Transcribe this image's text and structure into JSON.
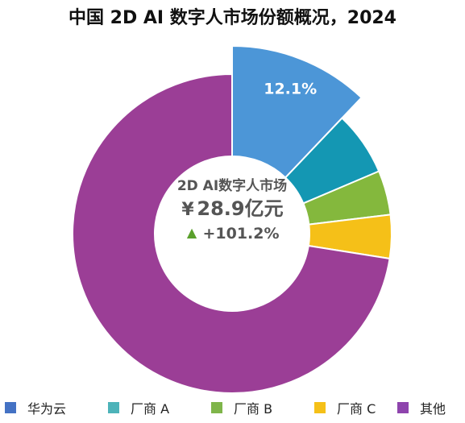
{
  "chart_data": {
    "type": "pie",
    "variant": "donut",
    "title": "中国 2D AI 数字人市场份额概况，2024",
    "center": {
      "label": "2D AI数字人市场",
      "value": "¥28.9亿元",
      "value_currency": "¥",
      "value_number": "28.9亿元",
      "growth_arrow": "▲",
      "growth": "+101.2%"
    },
    "slices": [
      {
        "name": "华为云",
        "value": 12.1,
        "label": "12.1%",
        "color": "#4C96D7",
        "exploded": true
      },
      {
        "name": "厂商 A",
        "value": 6.5,
        "color": "#1497B3",
        "exploded": false
      },
      {
        "name": "厂商 B",
        "value": 4.5,
        "color": "#84B83D",
        "exploded": false
      },
      {
        "name": "厂商 C",
        "value": 4.4,
        "color": "#F5C018",
        "exploded": false
      },
      {
        "name": "其他",
        "value": 72.5,
        "color": "#9B3E96",
        "exploded": false
      }
    ],
    "legend_position": "bottom",
    "legend_colors": [
      "#4472C4",
      "#4DB3B9",
      "#7FB54A",
      "#F5C018",
      "#8E44AD"
    ],
    "growth_arrow_color": "#5AA02C"
  }
}
